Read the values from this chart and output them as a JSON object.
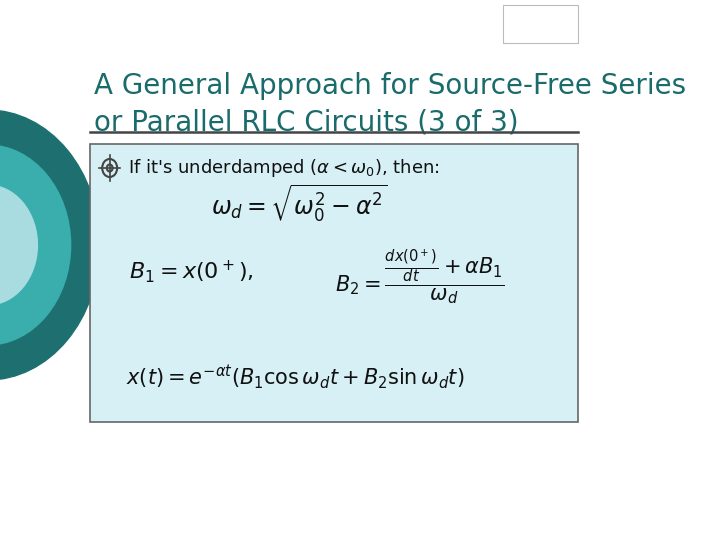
{
  "title_line1": "A General Approach for Source-Free Series",
  "title_line2": "or Parallel RLC Circuits (3 of 3)",
  "title_color": "#1a6b6b",
  "bg_color": "#ffffff",
  "box_bg_color": "#d6f0f5",
  "box_border_color": "#666666",
  "separator_color": "#444444",
  "text_color": "#111111",
  "circle_outer": "#1e7070",
  "circle_mid": "#3aadad",
  "circle_inner": "#a8dce0",
  "title_fontsize": 20,
  "formula_fontsize": 17,
  "formula2_fontsize": 16,
  "formula3_fontsize": 15,
  "formula4_fontsize": 15,
  "bullet_fontsize": 13
}
